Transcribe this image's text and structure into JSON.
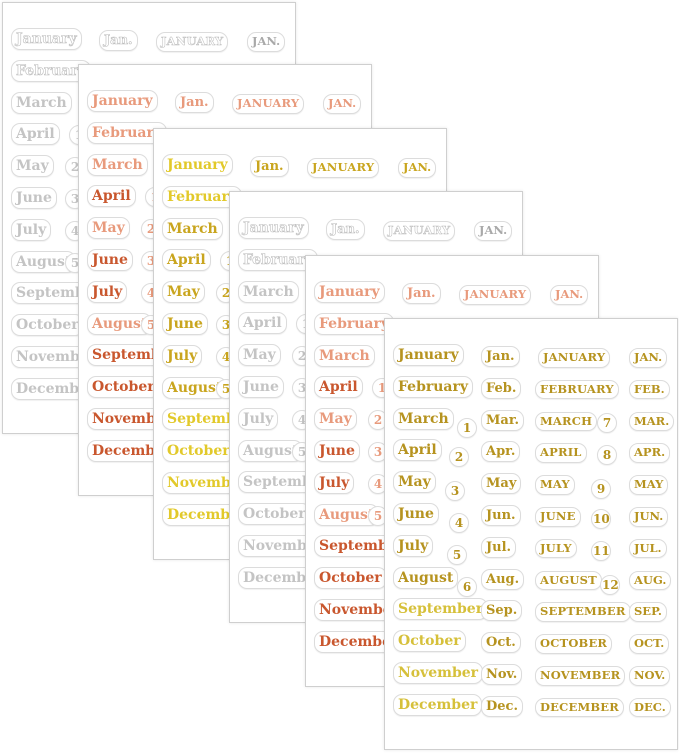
{
  "sheets": [
    {
      "id": "silver",
      "color": "#c4c4c4",
      "highlight": "#ffffff"
    },
    {
      "id": "rose-gold",
      "color": "#e89a7c",
      "highlight": "#c9572e"
    },
    {
      "id": "gold-bright",
      "color": "#c9a51e",
      "highlight": "#e2c92a"
    },
    {
      "id": "silver-2",
      "color": "#c4c4c4",
      "highlight": "#ffffff"
    },
    {
      "id": "rose-gold-2",
      "color": "#e89a7c",
      "highlight": "#c9572e"
    },
    {
      "id": "gold",
      "color": "#b6931f",
      "highlight": "#d6c03a"
    }
  ],
  "months_full": [
    "January",
    "February",
    "March",
    "April",
    "May",
    "June",
    "July",
    "August",
    "September",
    "October",
    "November",
    "December"
  ],
  "months_abbr": [
    "Jan.",
    "Feb.",
    "Mar.",
    "Apr.",
    "May",
    "Jun.",
    "Jul.",
    "Aug.",
    "Sep.",
    "Oct.",
    "Nov.",
    "Dec."
  ],
  "months_caps": [
    "JANUARY",
    "FEBRUARY",
    "MARCH",
    "APRIL",
    "MAY",
    "JUNE",
    "JULY",
    "AUGUST",
    "SEPTEMBER",
    "OCTOBER",
    "NOVEMBER",
    "DECEMBER"
  ],
  "months_short_caps": [
    "JAN.",
    "FEB.",
    "MAR.",
    "APR.",
    "MAY",
    "JUN.",
    "JUL.",
    "AUG.",
    "SEP.",
    "OCT.",
    "NOV.",
    "DEC."
  ],
  "numbers": [
    "1",
    "2",
    "3",
    "4",
    "5",
    "6",
    "7",
    "8",
    "9",
    "10",
    "11",
    "12"
  ]
}
